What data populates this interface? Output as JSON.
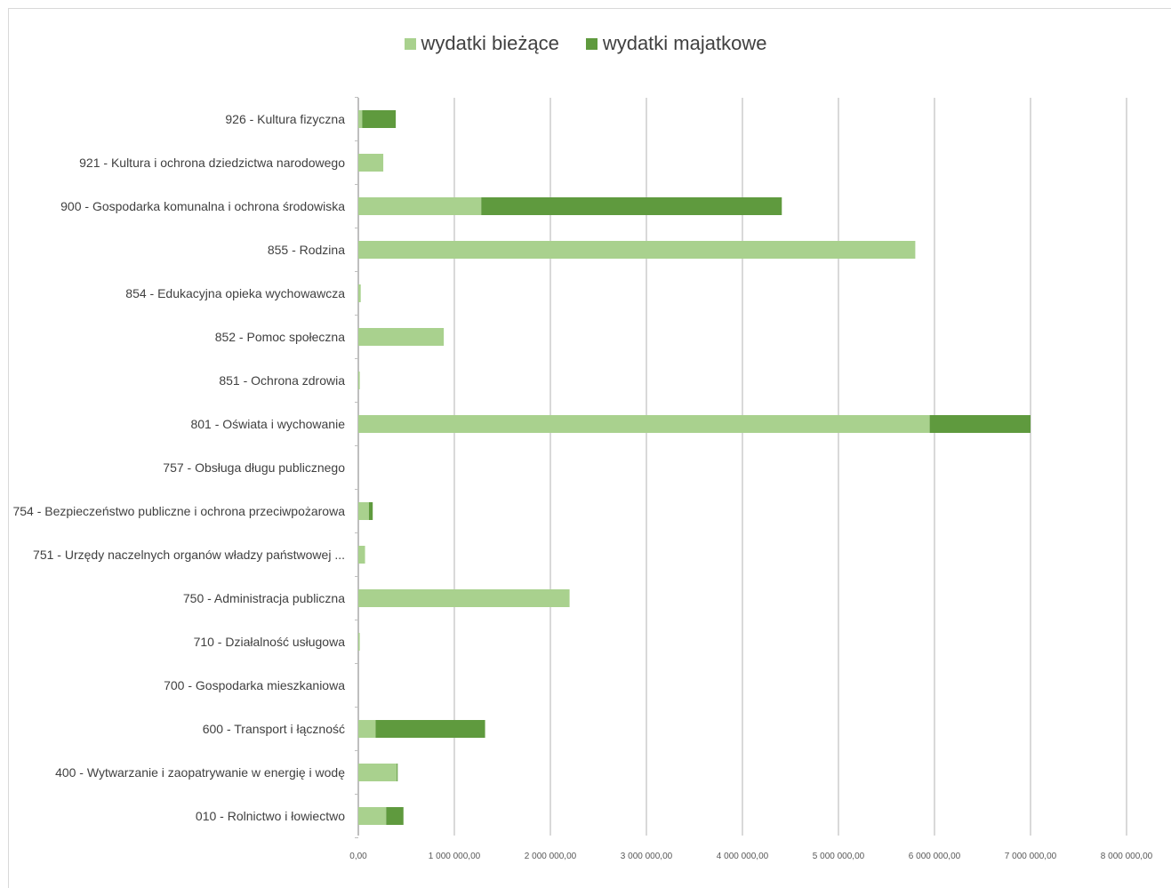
{
  "chart_data": {
    "type": "bar",
    "orientation": "horizontal",
    "stacked": true,
    "legend_position": "top",
    "grid": true,
    "title": "",
    "xlabel": "",
    "ylabel": "",
    "xlim": [
      0,
      8000000
    ],
    "x_ticks": [
      0,
      1000000,
      2000000,
      3000000,
      4000000,
      5000000,
      6000000,
      7000000,
      8000000
    ],
    "x_tick_labels": [
      "0,00",
      "1 000 000,00",
      "2 000 000,00",
      "3 000 000,00",
      "4 000 000,00",
      "5 000 000,00",
      "6 000 000,00",
      "7 000 000,00",
      "8 000 000,00"
    ],
    "categories": [
      "926 - Kultura fizyczna",
      "921 - Kultura i ochrona dziedzictwa narodowego",
      "900 - Gospodarka komunalna i ochrona środowiska",
      "855 - Rodzina",
      "854 - Edukacyjna opieka wychowawcza",
      "852 - Pomoc społeczna",
      "851 - Ochrona zdrowia",
      "801 - Oświata i wychowanie",
      "757 - Obsługa długu publicznego",
      "754 - Bezpieczeństwo publiczne i ochrona przeciwpożarowa",
      "751 - Urzędy naczelnych organów władzy państwowej ...",
      "750 - Administracja publiczna",
      "710 - Działalność usługowa",
      "700 - Gospodarka mieszkaniowa",
      "600 - Transport i łączność",
      "400 - Wytwarzanie i zaopatrywanie w energię i wodę",
      "010 - Rolnictwo i łowiectwo"
    ],
    "series": [
      {
        "name": "wydatki bieżące",
        "color": "#a9d18e",
        "values": [
          40000,
          260000,
          1280000,
          5800000,
          25000,
          890000,
          15000,
          5950000,
          0,
          110000,
          70000,
          2200000,
          15000,
          0,
          180000,
          400000,
          290000
        ]
      },
      {
        "name": "wydatki majątkowe",
        "color": "#5f9a3e",
        "values": [
          350000,
          0,
          3130000,
          0,
          0,
          0,
          0,
          1050000,
          0,
          40000,
          0,
          0,
          0,
          0,
          1140000,
          10000,
          180000
        ]
      }
    ]
  },
  "legend": {
    "current_label": "wydatki bieżące",
    "capital_label": "wydatki majatkowe"
  }
}
